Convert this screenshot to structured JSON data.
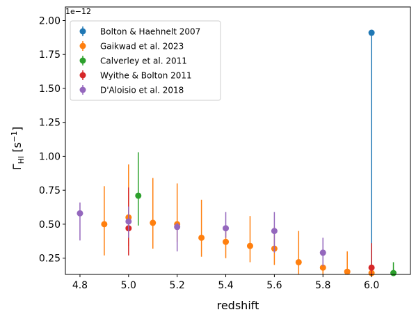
{
  "chart_data": {
    "type": "scatter",
    "title": "",
    "xlabel": "redshift",
    "ylabel": {
      "base": "Γ",
      "sub": "HI",
      "unit_open": " [s",
      "sup": "−1",
      "unit_close": "]"
    },
    "offset_label": "1e−12",
    "xlim": [
      4.74,
      6.16
    ],
    "ylim": [
      0.13,
      2.1
    ],
    "xticks": [
      4.8,
      5.0,
      5.2,
      5.4,
      5.6,
      5.8,
      6.0
    ],
    "xtick_labels": [
      "4.8",
      "5.0",
      "5.2",
      "5.4",
      "5.6",
      "5.8",
      "6.0"
    ],
    "yticks": [
      0.25,
      0.5,
      0.75,
      1.0,
      1.25,
      1.5,
      1.75,
      2.0
    ],
    "ytick_labels": [
      "0.25",
      "0.50",
      "0.75",
      "1.00",
      "1.25",
      "1.50",
      "1.75",
      "2.00"
    ],
    "y_scale_note": "values in units of 1e-12 s^-1",
    "legend_position": "upper left",
    "series": [
      {
        "name": "Bolton & Haehnelt 2007",
        "color": "#1f77b4",
        "points": [
          {
            "x": 6.0,
            "y": 1.91,
            "ylo": 0.13,
            "yhi": 1.91
          }
        ]
      },
      {
        "name": "Gaikwad et al. 2023",
        "color": "#ff7f0e",
        "points": [
          {
            "x": 4.9,
            "y": 0.5,
            "ylo": 0.27,
            "yhi": 0.78
          },
          {
            "x": 5.0,
            "y": 0.55,
            "ylo": 0.34,
            "yhi": 0.94
          },
          {
            "x": 5.1,
            "y": 0.51,
            "ylo": 0.32,
            "yhi": 0.84
          },
          {
            "x": 5.2,
            "y": 0.5,
            "ylo": 0.37,
            "yhi": 0.8
          },
          {
            "x": 5.3,
            "y": 0.4,
            "ylo": 0.26,
            "yhi": 0.68
          },
          {
            "x": 5.4,
            "y": 0.37,
            "ylo": 0.25,
            "yhi": 0.48
          },
          {
            "x": 5.5,
            "y": 0.34,
            "ylo": 0.22,
            "yhi": 0.56
          },
          {
            "x": 5.6,
            "y": 0.32,
            "ylo": 0.2,
            "yhi": 0.48
          },
          {
            "x": 5.7,
            "y": 0.22,
            "ylo": 0.13,
            "yhi": 0.45
          },
          {
            "x": 5.8,
            "y": 0.18,
            "ylo": 0.13,
            "yhi": 0.25
          },
          {
            "x": 5.9,
            "y": 0.15,
            "ylo": 0.13,
            "yhi": 0.3
          },
          {
            "x": 6.0,
            "y": 0.14,
            "ylo": 0.13,
            "yhi": 0.19
          }
        ]
      },
      {
        "name": "Calverley et al. 2011",
        "color": "#2ca02c",
        "points": [
          {
            "x": 5.04,
            "y": 0.71,
            "ylo": 0.49,
            "yhi": 1.03
          },
          {
            "x": 6.09,
            "y": 0.14,
            "ylo": 0.13,
            "yhi": 0.22
          }
        ]
      },
      {
        "name": "Wyithe & Bolton 2011",
        "color": "#d62728",
        "points": [
          {
            "x": 5.0,
            "y": 0.47,
            "ylo": 0.27,
            "yhi": 0.77
          },
          {
            "x": 6.0,
            "y": 0.18,
            "ylo": 0.13,
            "yhi": 0.36
          }
        ]
      },
      {
        "name": "D'Aloisio et al. 2018",
        "color": "#9467bd",
        "points": [
          {
            "x": 4.8,
            "y": 0.58,
            "ylo": 0.38,
            "yhi": 0.66
          },
          {
            "x": 5.0,
            "y": 0.52,
            "ylo": 0.4,
            "yhi": 0.63
          },
          {
            "x": 5.2,
            "y": 0.48,
            "ylo": 0.3,
            "yhi": 0.51
          },
          {
            "x": 5.4,
            "y": 0.47,
            "ylo": 0.4,
            "yhi": 0.59
          },
          {
            "x": 5.6,
            "y": 0.45,
            "ylo": 0.29,
            "yhi": 0.59
          },
          {
            "x": 5.8,
            "y": 0.29,
            "ylo": 0.19,
            "yhi": 0.4
          }
        ]
      }
    ]
  }
}
